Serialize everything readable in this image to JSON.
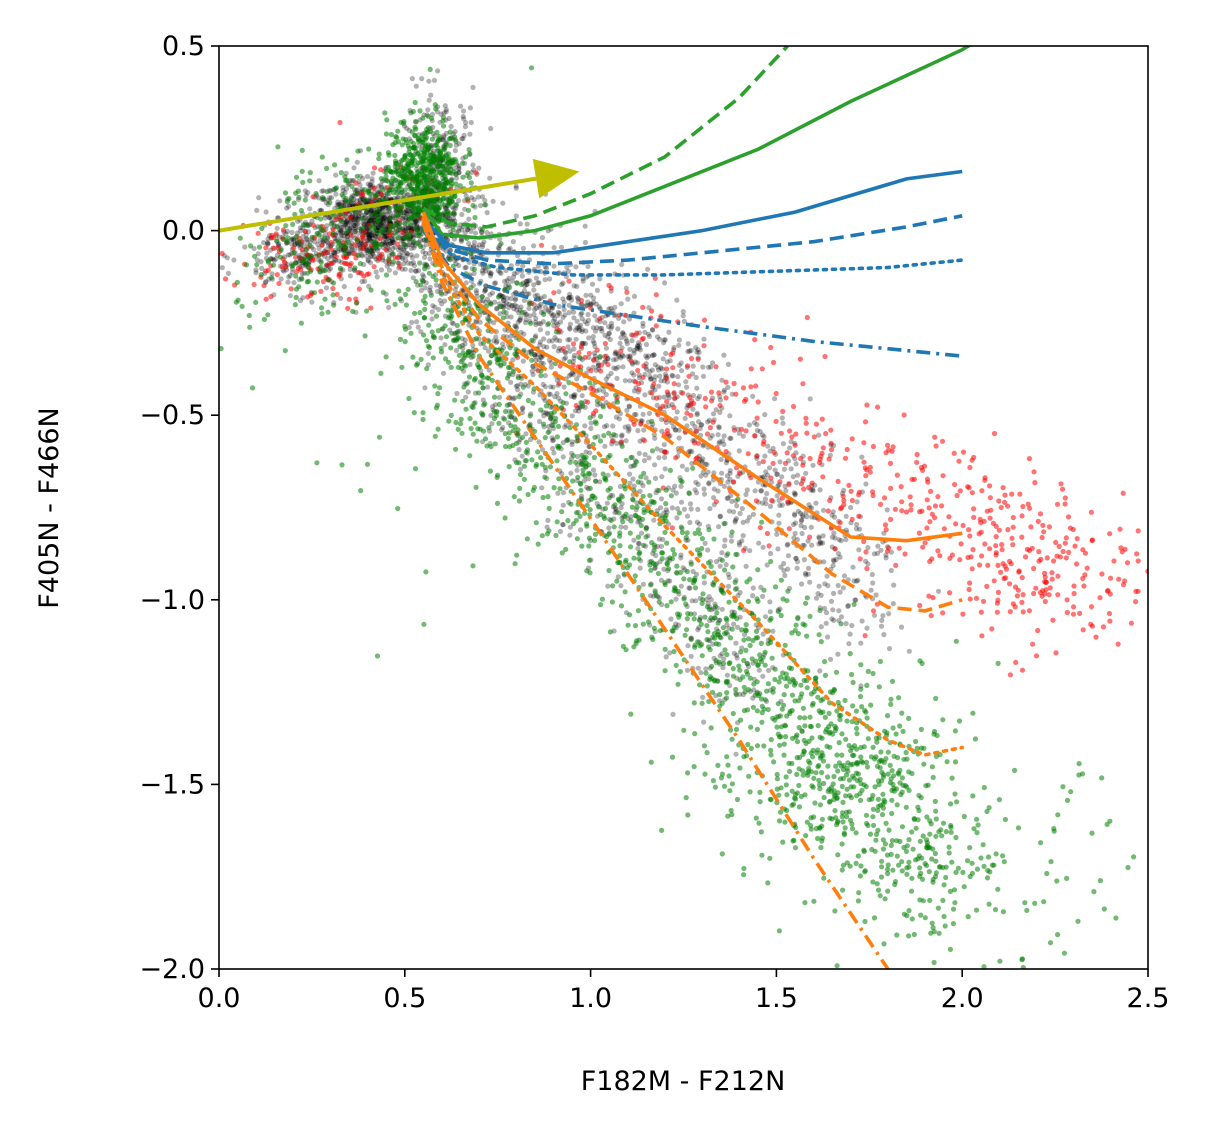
{
  "chart_data": {
    "type": "scatter",
    "title": "",
    "xlabel": "F182M - F212N",
    "ylabel": "F405N - F466N",
    "xlim": [
      0.0,
      2.5
    ],
    "ylim": [
      -2.0,
      0.5
    ],
    "xticks": [
      {
        "value": 0.0,
        "label": "0.0"
      },
      {
        "value": 0.5,
        "label": "0.5"
      },
      {
        "value": 1.0,
        "label": "1.0"
      },
      {
        "value": 1.5,
        "label": "1.5"
      },
      {
        "value": 2.0,
        "label": "2.0"
      },
      {
        "value": 2.5,
        "label": "2.5"
      }
    ],
    "yticks": [
      {
        "value": 0.5,
        "label": "0.5"
      },
      {
        "value": 0.0,
        "label": "0.0"
      },
      {
        "value": -0.5,
        "label": "−0.5"
      },
      {
        "value": -1.0,
        "label": "−1.0"
      },
      {
        "value": -1.5,
        "label": "−1.5"
      },
      {
        "value": -2.0,
        "label": "−2.0"
      }
    ],
    "grid": false,
    "legend": "none",
    "scatter_groups": [
      {
        "color": "#000000",
        "opacity": 0.3,
        "clusters": [
          {
            "cx": 0.42,
            "cy": 0.02,
            "sx": 0.09,
            "sy": 0.06,
            "n": 900
          },
          {
            "cx": 0.6,
            "cy": 0.12,
            "sx": 0.05,
            "sy": 0.13,
            "n": 300
          },
          {
            "cx": 0.22,
            "cy": -0.07,
            "sx": 0.08,
            "sy": 0.05,
            "n": 200
          },
          {
            "t0": 0.55,
            "t1": 1.75,
            "a0": 0.0,
            "a1": -0.95,
            "spread": 0.12,
            "n": 1200
          },
          {
            "t0": 0.6,
            "t1": 1.45,
            "a0": -0.2,
            "a1": -1.2,
            "spread": 0.1,
            "n": 500
          },
          {
            "t0": 0.6,
            "t1": 1.35,
            "a0": -0.08,
            "a1": -0.4,
            "spread": 0.07,
            "n": 300
          }
        ]
      },
      {
        "color": "#ff0000",
        "opacity": 0.55,
        "clusters": [
          {
            "cx": 0.25,
            "cy": -0.08,
            "sx": 0.1,
            "sy": 0.06,
            "n": 110
          },
          {
            "cx": 0.45,
            "cy": 0.05,
            "sx": 0.1,
            "sy": 0.08,
            "n": 60
          },
          {
            "t0": 0.9,
            "t1": 2.45,
            "a0": -0.3,
            "a1": -1.0,
            "spread": 0.12,
            "n": 450
          },
          {
            "cx": 2.1,
            "cy": -0.9,
            "sx": 0.18,
            "sy": 0.12,
            "n": 120
          }
        ]
      },
      {
        "color": "#008000",
        "opacity": 0.55,
        "clusters": [
          {
            "cx": 0.55,
            "cy": 0.15,
            "sx": 0.05,
            "sy": 0.08,
            "n": 500
          },
          {
            "cx": 0.4,
            "cy": 0.05,
            "sx": 0.12,
            "sy": 0.08,
            "n": 150
          },
          {
            "cx": 0.25,
            "cy": -0.12,
            "sx": 0.1,
            "sy": 0.08,
            "n": 80
          },
          {
            "t0": 0.55,
            "t1": 1.95,
            "a0": -0.2,
            "a1": -1.75,
            "spread": 0.12,
            "n": 1200
          },
          {
            "cx": 1.65,
            "cy": -1.45,
            "sx": 0.18,
            "sy": 0.16,
            "n": 300
          },
          {
            "cx": 2.05,
            "cy": -1.75,
            "sx": 0.2,
            "sy": 0.15,
            "n": 120
          },
          {
            "cx": 0.6,
            "cy": -0.55,
            "sx": 0.2,
            "sy": 0.3,
            "n": 50
          }
        ]
      }
    ],
    "lines": [
      {
        "color": "#2ca02c",
        "dash": "dashed",
        "points": [
          [
            0.55,
            0.06
          ],
          [
            0.62,
            0.02
          ],
          [
            0.72,
            0.01
          ],
          [
            0.85,
            0.04
          ],
          [
            1.0,
            0.1
          ],
          [
            1.2,
            0.2
          ],
          [
            1.4,
            0.36
          ],
          [
            1.53,
            0.5
          ]
        ]
      },
      {
        "color": "#2ca02c",
        "dash": "solid",
        "points": [
          [
            0.55,
            0.06
          ],
          [
            0.6,
            -0.01
          ],
          [
            0.7,
            -0.02
          ],
          [
            0.85,
            0.0
          ],
          [
            1.0,
            0.04
          ],
          [
            1.2,
            0.12
          ],
          [
            1.45,
            0.22
          ],
          [
            1.7,
            0.35
          ],
          [
            2.0,
            0.49
          ],
          [
            2.05,
            0.52
          ]
        ]
      },
      {
        "color": "#1f77b4",
        "dash": "solid",
        "points": [
          [
            0.55,
            0.03
          ],
          [
            0.62,
            -0.04
          ],
          [
            0.72,
            -0.06
          ],
          [
            0.9,
            -0.06
          ],
          [
            1.1,
            -0.03
          ],
          [
            1.3,
            0.0
          ],
          [
            1.55,
            0.05
          ],
          [
            1.85,
            0.14
          ],
          [
            2.0,
            0.16
          ]
        ]
      },
      {
        "color": "#1f77b4",
        "dash": "dashed",
        "points": [
          [
            0.55,
            0.02
          ],
          [
            0.62,
            -0.05
          ],
          [
            0.72,
            -0.08
          ],
          [
            0.9,
            -0.09
          ],
          [
            1.1,
            -0.08
          ],
          [
            1.3,
            -0.06
          ],
          [
            1.6,
            -0.03
          ],
          [
            1.85,
            0.01
          ],
          [
            2.0,
            0.04
          ]
        ]
      },
      {
        "color": "#1f77b4",
        "dash": "dotted",
        "points": [
          [
            0.55,
            0.01
          ],
          [
            0.63,
            -0.07
          ],
          [
            0.75,
            -0.1
          ],
          [
            0.95,
            -0.12
          ],
          [
            1.2,
            -0.12
          ],
          [
            1.5,
            -0.11
          ],
          [
            1.8,
            -0.1
          ],
          [
            2.0,
            -0.08
          ]
        ]
      },
      {
        "color": "#1f77b4",
        "dash": "dashdot",
        "points": [
          [
            0.55,
            0.0
          ],
          [
            0.62,
            -0.1
          ],
          [
            0.72,
            -0.15
          ],
          [
            0.9,
            -0.2
          ],
          [
            1.1,
            -0.23
          ],
          [
            1.3,
            -0.26
          ],
          [
            1.6,
            -0.3
          ],
          [
            2.0,
            -0.34
          ]
        ]
      },
      {
        "color": "#ff7f0e",
        "dash": "solid",
        "points": [
          [
            0.55,
            0.05
          ],
          [
            0.6,
            -0.08
          ],
          [
            0.7,
            -0.2
          ],
          [
            0.85,
            -0.32
          ],
          [
            1.0,
            -0.4
          ],
          [
            1.2,
            -0.5
          ],
          [
            1.45,
            -0.67
          ],
          [
            1.7,
            -0.83
          ],
          [
            1.85,
            -0.84
          ],
          [
            2.0,
            -0.82
          ]
        ]
      },
      {
        "color": "#ff7f0e",
        "dash": "dashed",
        "points": [
          [
            0.55,
            0.04
          ],
          [
            0.6,
            -0.1
          ],
          [
            0.7,
            -0.24
          ],
          [
            0.85,
            -0.36
          ],
          [
            1.0,
            -0.44
          ],
          [
            1.2,
            -0.56
          ],
          [
            1.45,
            -0.76
          ],
          [
            1.65,
            -0.93
          ],
          [
            1.8,
            -1.02
          ],
          [
            1.9,
            -1.03
          ],
          [
            2.0,
            -1.0
          ]
        ]
      },
      {
        "color": "#ff7f0e",
        "dash": "dotted",
        "points": [
          [
            0.55,
            0.03
          ],
          [
            0.6,
            -0.12
          ],
          [
            0.7,
            -0.28
          ],
          [
            0.85,
            -0.42
          ],
          [
            1.0,
            -0.58
          ],
          [
            1.2,
            -0.8
          ],
          [
            1.45,
            -1.06
          ],
          [
            1.65,
            -1.28
          ],
          [
            1.8,
            -1.38
          ],
          [
            1.9,
            -1.42
          ],
          [
            2.0,
            -1.4
          ]
        ]
      },
      {
        "color": "#ff7f0e",
        "dash": "dashdot",
        "points": [
          [
            0.55,
            0.02
          ],
          [
            0.6,
            -0.14
          ],
          [
            0.7,
            -0.34
          ],
          [
            0.85,
            -0.56
          ],
          [
            1.0,
            -0.78
          ],
          [
            1.2,
            -1.08
          ],
          [
            1.4,
            -1.38
          ],
          [
            1.6,
            -1.7
          ],
          [
            1.8,
            -2.0
          ]
        ]
      }
    ],
    "arrow": {
      "color": "#bfbf00",
      "from": [
        0.0,
        0.0
      ],
      "to": [
        0.97,
        0.16
      ]
    }
  }
}
